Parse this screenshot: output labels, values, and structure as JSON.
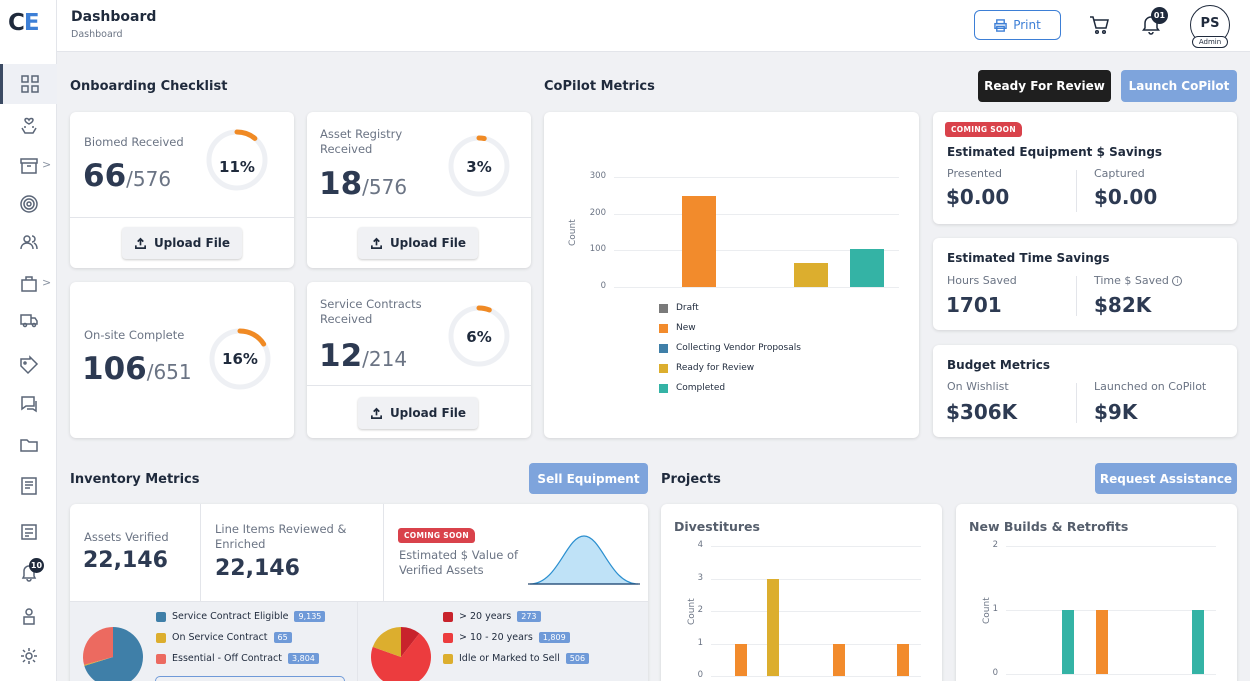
{
  "app": {
    "logo_c": "C",
    "logo_e": "E",
    "title": "Dashboard",
    "breadcrumb": "Dashboard"
  },
  "header": {
    "print_label": "Print",
    "bell_count": "01",
    "avatar_initials": "PS",
    "avatar_role": "Admin"
  },
  "sidebar": {
    "bell_badge": "10",
    "icons": [
      "grid-icon",
      "hand-heart-icon",
      "archive-icon",
      "target-icon",
      "users-icon",
      "briefcase-icon",
      "truck-icon",
      "tag-icon",
      "chat-icon",
      "folder-icon",
      "invoice-icon",
      "list-icon",
      "bell-icon",
      "user-lock-icon",
      "gear-icon"
    ]
  },
  "onboarding": {
    "title": "Onboarding Checklist",
    "upload_label": "Upload File",
    "cards": [
      {
        "label": "Biomed Received",
        "num": "66",
        "den": "/576",
        "pct": "11%",
        "fraction": 0.11
      },
      {
        "label": "Asset Registry Received",
        "num": "18",
        "den": "/576",
        "pct": "3%",
        "fraction": 0.03
      },
      {
        "label": "On-site Complete",
        "num": "106",
        "den": "/651",
        "pct": "16%",
        "fraction": 0.16
      },
      {
        "label": "Service Contracts Received",
        "num": "12",
        "den": "/214",
        "pct": "6%",
        "fraction": 0.06
      }
    ]
  },
  "copilot": {
    "title": "CoPilot Metrics",
    "ready_btn": "Ready For Review",
    "launch_btn": "Launch CoPilot"
  },
  "chart_data": [
    {
      "type": "bar",
      "ylabel": "Count",
      "yticks": [
        "300",
        "200",
        "100",
        "0"
      ],
      "ylim": [
        0,
        300
      ],
      "categories": [
        "Draft",
        "New",
        "Collecting Vendor Proposals",
        "Ready for Review",
        "Completed"
      ],
      "values": [
        0,
        248,
        0,
        65,
        105
      ],
      "colors": [
        "#7a7a7a",
        "#f28b2c",
        "#3f7fa8",
        "#dcae2e",
        "#34b3a5"
      ]
    },
    {
      "type": "bar",
      "title": "Divestitures",
      "ylabel": "Count",
      "yticks": [
        "4",
        "3",
        "2",
        "1",
        "0"
      ],
      "ylim": [
        0,
        4
      ],
      "values": [
        1,
        3,
        1,
        1
      ],
      "colors": [
        "#f28b2c",
        "#dcae2e",
        "#f28b2c",
        "#f28b2c"
      ]
    },
    {
      "type": "bar",
      "title": "New Builds & Retrofits",
      "ylabel": "Count",
      "yticks": [
        "2",
        "1",
        "0"
      ],
      "ylim": [
        0,
        2
      ],
      "values": [
        1,
        1,
        1
      ],
      "colors": [
        "#34b3a5",
        "#f28b2c",
        "#34b3a5"
      ]
    },
    {
      "type": "pie",
      "values": [
        9135,
        65,
        3804
      ],
      "colors": [
        "#3f7fa8",
        "#dcae2e",
        "#ec6a60"
      ]
    },
    {
      "type": "pie",
      "values": [
        273,
        1809,
        506
      ],
      "colors": [
        "#c8232c",
        "#ec3c3e",
        "#dcae2e"
      ]
    }
  ],
  "metrics": {
    "soon": "COMING SOON",
    "equip": {
      "title": "Estimated Equipment $ Savings",
      "presented": "Presented",
      "presented_val": "$0.00",
      "captured": "Captured",
      "captured_val": "$0.00"
    },
    "time": {
      "title": "Estimated Time Savings",
      "hours": "Hours Saved",
      "hours_val": "1701",
      "dollars": "Time $ Saved",
      "dollars_val": "$82K"
    },
    "budget": {
      "title": "Budget Metrics",
      "wish": "On Wishlist",
      "wish_val": "$306K",
      "launched": "Launched on CoPilot",
      "launched_val": "$9K"
    }
  },
  "inventory": {
    "title": "Inventory Metrics",
    "sell_btn": "Sell Equipment",
    "assets_label": "Assets Verified",
    "assets_val": "22,146",
    "line_label": "Line Items Reviewed & Enriched",
    "line_val": "22,146",
    "est_label": "Estimated $ Value of Verified Assets",
    "pie1_legend": [
      {
        "label": "Service Contract Eligible",
        "count": "9,135",
        "color": "#3f7fa8"
      },
      {
        "label": "On Service Contract",
        "count": "65",
        "color": "#dcae2e"
      },
      {
        "label": "Essential - Off Contract",
        "count": "3,804",
        "color": "#ec6a60"
      }
    ],
    "pie2_legend": [
      {
        "label": "> 20 years",
        "count": "273",
        "color": "#c8232c"
      },
      {
        "label": "> 10 - 20 years",
        "count": "1,809",
        "color": "#ec3c3e"
      },
      {
        "label": "Idle or Marked to Sell",
        "count": "506",
        "color": "#dcae2e"
      }
    ]
  },
  "projects": {
    "title": "Projects",
    "assist_btn": "Request Assistance",
    "div_title": "Divestitures",
    "nb_title": "New Builds & Retrofits"
  }
}
